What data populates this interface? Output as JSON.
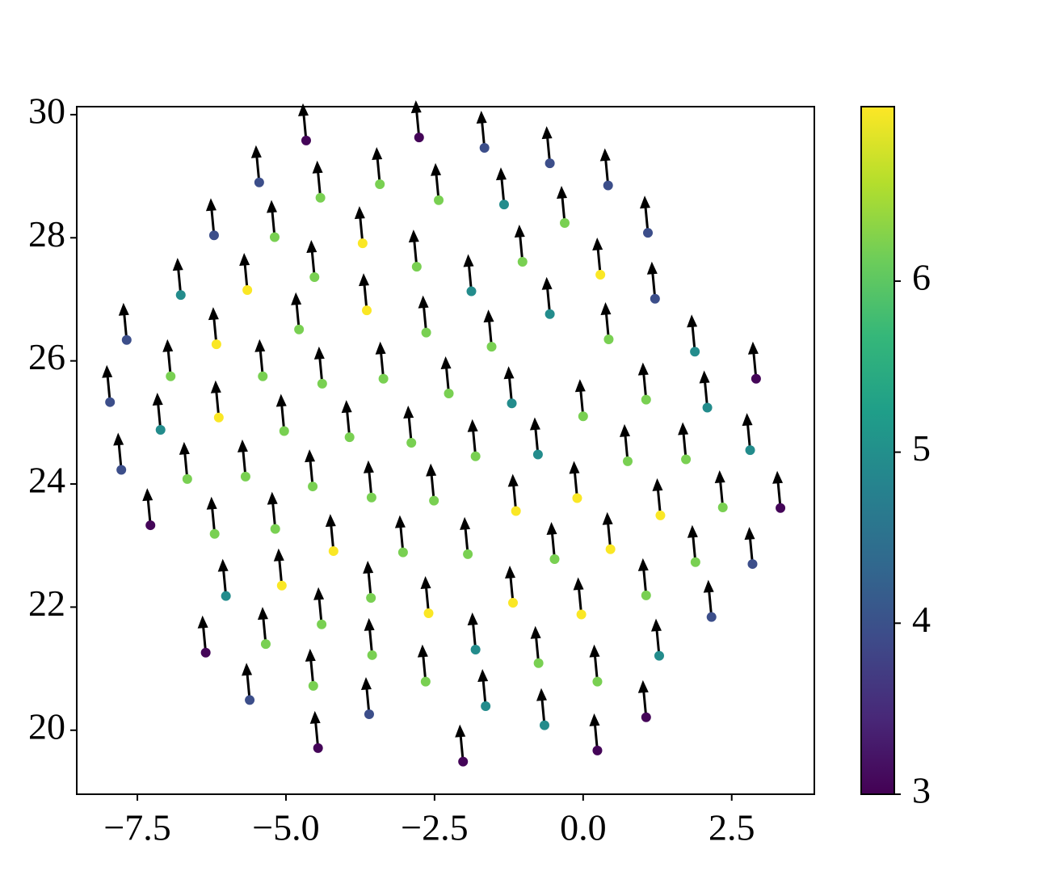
{
  "chart_data": {
    "type": "scatter",
    "cmap": "viridis",
    "x": [
      -4.66,
      -2.76,
      -1.66,
      -0.56,
      0.42,
      -5.45,
      -4.42,
      -3.42,
      -2.43,
      -1.33,
      -0.31,
      -6.21,
      -5.19,
      -3.71,
      -2.8,
      -1.02,
      1.09,
      -6.77,
      -5.65,
      -4.52,
      -1.88,
      0.29,
      1.21,
      -7.68,
      -6.17,
      -4.78,
      -3.64,
      -2.64,
      -0.56,
      0.43,
      -1.54,
      1.88,
      2.91,
      -7.96,
      -6.94,
      -5.39,
      -4.39,
      -3.36,
      -2.26,
      -1.2,
      0.0,
      1.06,
      2.09,
      -7.11,
      -6.13,
      -5.03,
      -3.93,
      -2.89,
      -1.81,
      -0.76,
      0.75,
      1.73,
      2.81,
      -7.77,
      -6.66,
      -5.68,
      -4.55,
      -3.56,
      -2.51,
      -1.13,
      -0.1,
      2.35,
      3.32,
      -7.28,
      -6.2,
      -5.18,
      -4.2,
      -3.03,
      -1.94,
      -0.48,
      0.46,
      1.3,
      1.89,
      2.85,
      -6.01,
      -5.07,
      -3.57,
      -2.6,
      -1.18,
      -0.03,
      1.06,
      2.16,
      -6.35,
      -5.34,
      -4.4,
      -3.55,
      -1.81,
      -0.75,
      1.28,
      -5.61,
      -4.54,
      -3.6,
      -2.65,
      -1.64,
      -0.65,
      0.24,
      1.06,
      -4.46,
      -2.02,
      0.24
    ],
    "y": [
      29.58,
      29.63,
      29.46,
      29.21,
      28.85,
      28.9,
      28.65,
      28.87,
      28.61,
      28.54,
      28.24,
      28.04,
      28.01,
      27.91,
      27.53,
      27.61,
      28.08,
      27.07,
      27.15,
      27.36,
      27.13,
      27.4,
      27.01,
      26.34,
      26.27,
      26.51,
      26.82,
      26.46,
      26.76,
      26.35,
      26.23,
      26.15,
      25.71,
      25.33,
      25.75,
      25.75,
      25.63,
      25.71,
      25.47,
      25.31,
      25.1,
      25.37,
      25.24,
      24.88,
      25.08,
      24.86,
      24.76,
      24.67,
      24.45,
      24.48,
      24.37,
      24.4,
      24.55,
      24.23,
      24.08,
      24.12,
      23.96,
      23.78,
      23.73,
      23.56,
      23.77,
      23.62,
      23.61,
      23.33,
      23.19,
      23.27,
      22.91,
      22.89,
      22.86,
      22.78,
      22.94,
      23.49,
      22.73,
      22.7,
      22.18,
      22.35,
      22.15,
      21.9,
      22.07,
      21.88,
      22.19,
      21.84,
      21.26,
      21.4,
      21.72,
      21.22,
      21.31,
      21.09,
      21.21,
      20.49,
      20.72,
      20.26,
      20.79,
      20.39,
      20.08,
      20.79,
      20.21,
      19.71,
      19.49,
      19.67
    ],
    "values": [
      3.05,
      3.05,
      3.95,
      3.95,
      3.95,
      3.95,
      6.2,
      6.2,
      6.2,
      4.95,
      6.2,
      3.95,
      6.2,
      7.0,
      6.2,
      6.2,
      3.95,
      4.95,
      7.0,
      6.2,
      4.95,
      7.0,
      3.95,
      3.95,
      7.0,
      6.2,
      7.0,
      6.2,
      4.95,
      6.2,
      6.2,
      4.95,
      3.05,
      3.95,
      6.2,
      6.2,
      6.2,
      6.2,
      6.2,
      4.95,
      6.2,
      6.2,
      4.95,
      4.95,
      7.0,
      6.2,
      6.2,
      6.2,
      6.2,
      4.95,
      6.2,
      6.2,
      4.95,
      3.95,
      6.2,
      6.2,
      6.2,
      6.2,
      6.2,
      7.0,
      7.0,
      6.2,
      3.05,
      3.05,
      6.2,
      6.2,
      7.0,
      6.2,
      6.2,
      6.2,
      7.0,
      7.0,
      6.2,
      3.95,
      4.95,
      7.0,
      6.2,
      7.0,
      7.0,
      7.0,
      6.2,
      3.95,
      3.05,
      6.2,
      6.2,
      6.2,
      4.95,
      6.2,
      4.95,
      3.95,
      6.2,
      3.95,
      6.2,
      4.95,
      4.95,
      6.2,
      3.05,
      3.05,
      3.05,
      3.05
    ],
    "xlim": [
      -8.52,
      3.89
    ],
    "ylim": [
      18.96,
      30.13
    ],
    "xticks": [
      {
        "value": -7.5,
        "label": "−7.5"
      },
      {
        "value": -5.0,
        "label": "−5.0"
      },
      {
        "value": -2.5,
        "label": "−2.5"
      },
      {
        "value": 0.0,
        "label": "0.0"
      },
      2.5
    ],
    "yticks": [
      20,
      22,
      24,
      26,
      28,
      30
    ],
    "clim": [
      3,
      7.02
    ],
    "cticks": [
      3,
      4,
      5,
      6
    ]
  }
}
